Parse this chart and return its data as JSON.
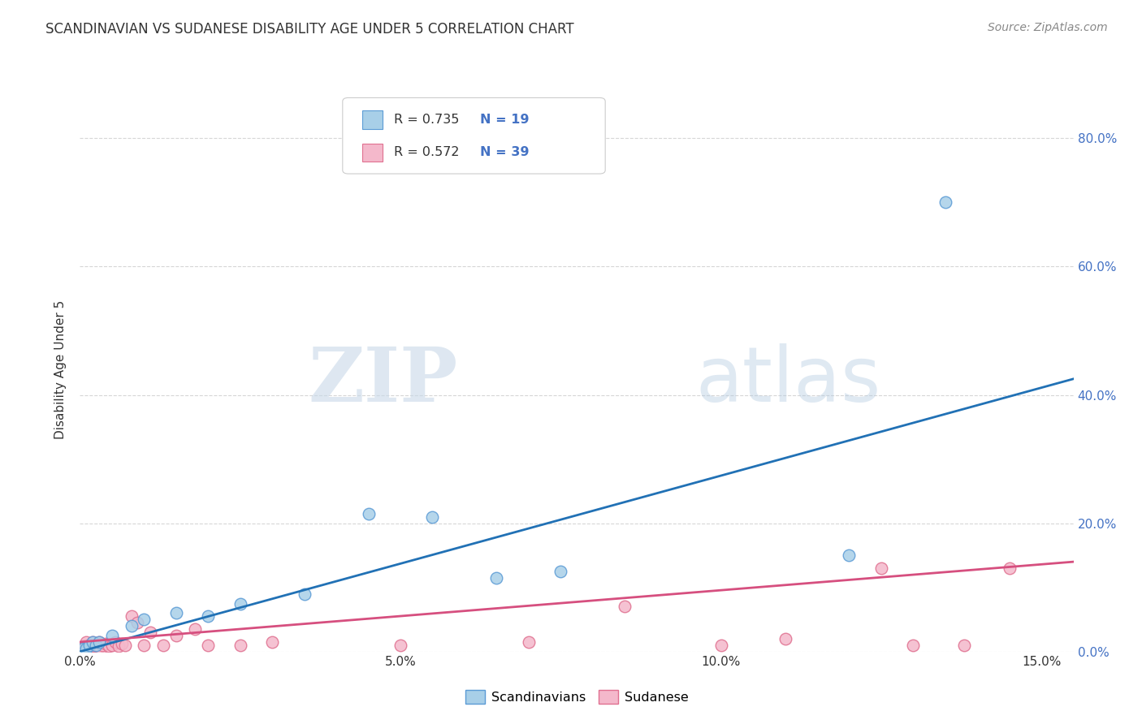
{
  "title": "SCANDINAVIAN VS SUDANESE DISABILITY AGE UNDER 5 CORRELATION CHART",
  "source": "Source: ZipAtlas.com",
  "xlabel_vals": [
    0.0,
    5.0,
    10.0,
    15.0
  ],
  "ylabel_vals": [
    0.0,
    20.0,
    40.0,
    60.0,
    80.0
  ],
  "xlim": [
    0.0,
    15.5
  ],
  "ylim": [
    0.0,
    88.0
  ],
  "watermark_zip": "ZIP",
  "watermark_atlas": "atlas",
  "legend_blue_r": "R = 0.735",
  "legend_blue_n": "N = 19",
  "legend_pink_r": "R = 0.572",
  "legend_pink_n": "N = 39",
  "legend_label_blue": "Scandinavians",
  "legend_label_pink": "Sudanese",
  "blue_scatter_color": "#a8cfe8",
  "blue_edge_color": "#5b9bd5",
  "pink_scatter_color": "#f4b8cb",
  "pink_edge_color": "#e07090",
  "blue_line_color": "#2171b5",
  "pink_line_color": "#d64f7f",
  "scandinavian_x": [
    0.05,
    0.1,
    0.15,
    0.2,
    0.25,
    0.3,
    0.5,
    0.8,
    1.0,
    1.5,
    2.0,
    2.5,
    3.5,
    4.5,
    5.5,
    6.5,
    7.5,
    12.0,
    13.5
  ],
  "scandinavian_y": [
    0.5,
    0.5,
    1.0,
    1.5,
    1.0,
    1.5,
    2.5,
    4.0,
    5.0,
    6.0,
    5.5,
    7.5,
    9.0,
    21.5,
    21.0,
    11.5,
    12.5,
    15.0,
    70.0
  ],
  "sudanese_x": [
    0.05,
    0.08,
    0.1,
    0.12,
    0.15,
    0.18,
    0.2,
    0.22,
    0.25,
    0.28,
    0.3,
    0.32,
    0.35,
    0.4,
    0.45,
    0.5,
    0.55,
    0.6,
    0.65,
    0.7,
    0.8,
    0.9,
    1.0,
    1.1,
    1.3,
    1.5,
    1.8,
    2.0,
    2.5,
    3.0,
    5.0,
    7.0,
    8.5,
    10.0,
    11.0,
    12.5,
    13.0,
    13.8,
    14.5
  ],
  "sudanese_y": [
    0.5,
    1.0,
    1.5,
    0.8,
    0.5,
    1.0,
    1.5,
    0.8,
    1.0,
    1.2,
    1.5,
    0.5,
    1.0,
    1.2,
    0.8,
    1.0,
    1.5,
    0.8,
    1.2,
    1.0,
    5.5,
    4.5,
    1.0,
    3.0,
    1.0,
    2.5,
    3.5,
    1.0,
    1.0,
    1.5,
    1.0,
    1.5,
    7.0,
    1.0,
    2.0,
    13.0,
    1.0,
    1.0,
    13.0
  ],
  "blue_trendline_x": [
    0.0,
    15.5
  ],
  "blue_trendline_y": [
    0.0,
    42.5
  ],
  "pink_trendline_x": [
    0.0,
    15.5
  ],
  "pink_trendline_y": [
    1.5,
    14.0
  ],
  "background_color": "#ffffff",
  "grid_color": "#cccccc",
  "title_color": "#333333",
  "source_color": "#888888",
  "yaxis_label_color": "#4472c4",
  "ylabel": "Disability Age Under 5"
}
